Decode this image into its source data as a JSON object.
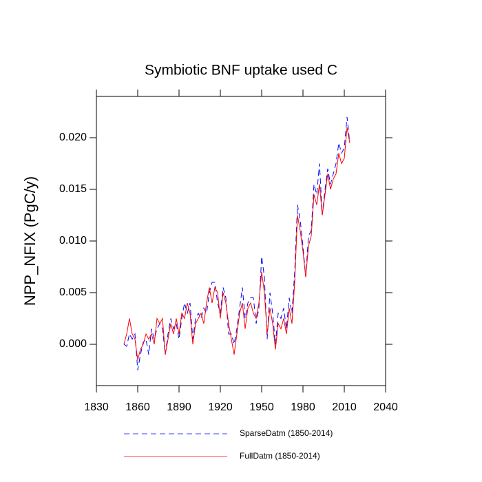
{
  "chart_data": {
    "type": "line",
    "title": "Symbiotic BNF uptake used C",
    "y_label": "NPP_NFIX  (PgC/y)",
    "x": [
      1850,
      1852,
      1854,
      1856,
      1858,
      1860,
      1862,
      1864,
      1866,
      1868,
      1870,
      1872,
      1874,
      1876,
      1878,
      1880,
      1882,
      1884,
      1886,
      1888,
      1890,
      1892,
      1894,
      1896,
      1898,
      1900,
      1902,
      1904,
      1906,
      1908,
      1910,
      1912,
      1914,
      1916,
      1918,
      1920,
      1922,
      1924,
      1926,
      1928,
      1930,
      1932,
      1934,
      1936,
      1938,
      1940,
      1942,
      1944,
      1946,
      1948,
      1950,
      1952,
      1954,
      1956,
      1958,
      1960,
      1962,
      1964,
      1966,
      1968,
      1970,
      1972,
      1974,
      1976,
      1978,
      1980,
      1982,
      1984,
      1986,
      1988,
      1990,
      1992,
      1994,
      1996,
      1998,
      2000,
      2002,
      2004,
      2006,
      2008,
      2010,
      2012,
      2014
    ],
    "series": [
      {
        "name": "SparseDatm (1850-2014)",
        "color": "#0000ff",
        "line_style": "dashed",
        "values": [
          0.0,
          -0.0002,
          0.001,
          0.0005,
          0.001,
          -0.0025,
          -0.001,
          0.0002,
          0.0005,
          -0.001,
          0.0015,
          0.0005,
          0.0015,
          0.002,
          0.0015,
          -0.001,
          0.001,
          0.0025,
          0.0015,
          0.002,
          0.0005,
          0.0025,
          0.004,
          0.003,
          0.004,
          0.0005,
          0.0025,
          0.003,
          0.0025,
          0.0035,
          0.003,
          0.005,
          0.006,
          0.006,
          0.004,
          0.003,
          0.0055,
          0.0045,
          0.001,
          0.001,
          0.0,
          0.0015,
          0.0035,
          0.0055,
          0.0025,
          0.004,
          0.0045,
          0.0045,
          0.002,
          0.0035,
          0.0085,
          0.0065,
          0.0005,
          0.005,
          0.003,
          0.0,
          0.003,
          0.0025,
          0.0035,
          0.0015,
          0.0045,
          0.003,
          0.007,
          0.0135,
          0.012,
          0.0095,
          0.0065,
          0.0105,
          0.011,
          0.0155,
          0.0145,
          0.0175,
          0.0125,
          0.015,
          0.017,
          0.0155,
          0.0165,
          0.0175,
          0.0195,
          0.0185,
          0.019,
          0.022,
          0.0195
        ]
      },
      {
        "name": "FullDatm (1850-2014)",
        "color": "#ff0000",
        "line_style": "solid",
        "values": [
          0.0,
          0.001,
          0.0025,
          0.001,
          0.0005,
          -0.0015,
          -0.0005,
          0.0,
          0.001,
          0.0005,
          0.001,
          0.0,
          0.0025,
          0.002,
          0.0025,
          -0.001,
          0.0005,
          0.002,
          0.001,
          0.0025,
          0.001,
          0.003,
          0.0025,
          0.004,
          0.003,
          0.0,
          0.002,
          0.0025,
          0.003,
          0.002,
          0.004,
          0.0055,
          0.004,
          0.0055,
          0.005,
          0.0025,
          0.005,
          0.004,
          0.002,
          0.0005,
          -0.001,
          0.001,
          0.003,
          0.004,
          0.0015,
          0.0035,
          0.004,
          0.003,
          0.0025,
          0.004,
          0.007,
          0.005,
          0.001,
          0.0035,
          0.002,
          -0.0005,
          0.002,
          0.0015,
          0.0025,
          0.001,
          0.0035,
          0.002,
          0.006,
          0.0125,
          0.011,
          0.009,
          0.0065,
          0.0095,
          0.0105,
          0.0145,
          0.0135,
          0.0155,
          0.0125,
          0.0145,
          0.0165,
          0.015,
          0.016,
          0.0165,
          0.0185,
          0.0175,
          0.018,
          0.021,
          0.0195
        ]
      }
    ],
    "xlim": [
      1830,
      2040
    ],
    "xticks": [
      1830,
      1860,
      1890,
      1920,
      1950,
      1980,
      2010,
      2040
    ],
    "ylim": [
      -0.004,
      0.024
    ],
    "yticks": [
      {
        "value": 0,
        "label": "0.000"
      },
      {
        "value": 0.005,
        "label": "0.005"
      },
      {
        "value": 0.01,
        "label": "0.010"
      },
      {
        "value": 0.015,
        "label": "0.015"
      },
      {
        "value": 0.02,
        "label": "0.020"
      }
    ],
    "legend": "bottom"
  }
}
